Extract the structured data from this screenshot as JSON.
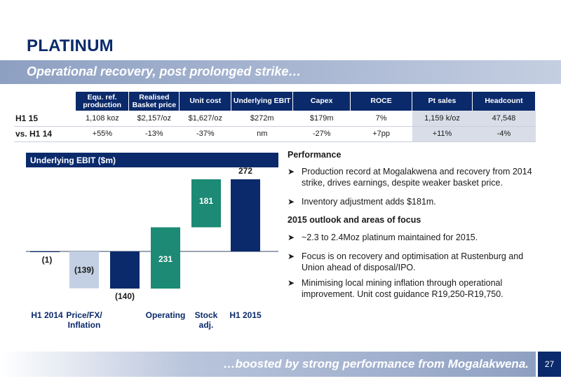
{
  "header": {
    "title": "PLATINUM",
    "subtitle": "Operational recovery, post prolonged strike…"
  },
  "kpi_table": {
    "columns": [
      "Equ. ref. production",
      "Realised Basket price",
      "Unit cost",
      "Underlying EBIT",
      "Capex",
      "ROCE",
      "Pt sales",
      "Headcount"
    ],
    "rows": [
      {
        "label": "H1 15",
        "values": [
          "1,108 koz",
          "$2,157/oz",
          "$1,627/oz",
          "$272m",
          "$179m",
          "7%",
          "1,159 k/oz",
          "47,548"
        ]
      },
      {
        "label": "vs. H1 14",
        "values": [
          "+55%",
          "-13%",
          "-37%",
          "nm",
          "-27%",
          "+7pp",
          "+11%",
          "-4%"
        ]
      }
    ]
  },
  "chart_data": {
    "type": "bar",
    "title": "Underlying EBIT ($m)",
    "categories": [
      "H1 2014",
      "Price/FX/ Inflation",
      "",
      "Operating",
      "Stock adj.",
      "H1 2015"
    ],
    "values": [
      -1,
      -139,
      -140,
      231,
      181,
      272
    ],
    "labels": [
      "(1)",
      "(139)",
      "(140)",
      "231",
      "181",
      "272"
    ],
    "colors": [
      "#0b2a6b",
      "#c3cfe2",
      "#0b2a6b",
      "#1c8a75",
      "#1c8a75",
      "#0b2a6b"
    ],
    "waterfall": [
      {
        "base": 0,
        "value": -1
      },
      {
        "base": 0,
        "value": -139
      },
      {
        "base": 0,
        "value": -140
      },
      {
        "base": -140,
        "value": 231
      },
      {
        "base": 91,
        "value": 181
      },
      {
        "base": 0,
        "value": 272
      }
    ],
    "ylim": [
      -180,
      300
    ]
  },
  "performance": {
    "heading": "Performance",
    "bullets": [
      "Production record at Mogalakwena and recovery from 2014 strike, drives earnings, despite weaker basket price.",
      "Inventory adjustment adds $181m."
    ]
  },
  "outlook": {
    "heading": "2015 outlook and areas of focus",
    "bullets": [
      "~2.3 to 2.4Moz platinum maintained for 2015.",
      "Focus is on recovery and optimisation at Rustenburg and Union ahead of disposal/IPO.",
      "Minimising local mining inflation through operational improvement. Unit cost guidance R19,250-R19,750."
    ]
  },
  "footer": {
    "tagline": "…boosted by strong performance from Mogalakwena.",
    "page_number": "27"
  },
  "colors": {
    "navy": "#0b2a6b",
    "teal": "#1c8a75",
    "light_blue": "#c3cfe2"
  }
}
